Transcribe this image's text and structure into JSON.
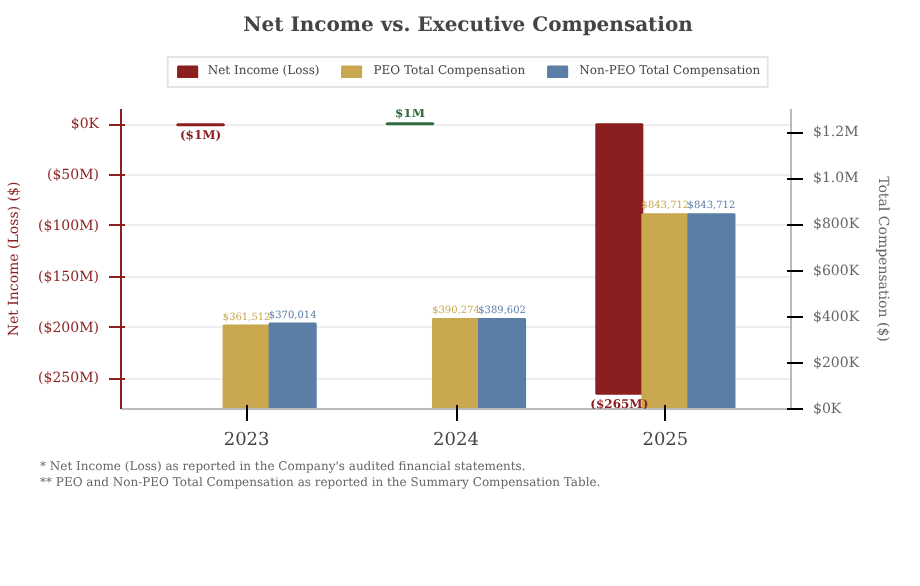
{
  "chart_data": {
    "type": "bar",
    "title": "Net Income vs. Executive Compensation",
    "categories": [
      "2023",
      "2024",
      "2025"
    ],
    "ylabel": "Net Income (Loss) ($)",
    "y2label": "Total Compensation ($)",
    "ylim": [
      -280,
      15
    ],
    "yticks": [
      {
        "value": 0,
        "label": "$0K"
      },
      {
        "value": -50,
        "label": "($50M)"
      },
      {
        "value": -100,
        "label": "($100M)"
      },
      {
        "value": -150,
        "label": "($150M)"
      },
      {
        "value": -200,
        "label": "($200M)"
      },
      {
        "value": -250,
        "label": "($250M)"
      }
    ],
    "y2lim": [
      0,
      1300000
    ],
    "y2ticks": [
      {
        "value": 0,
        "label": "$0K"
      },
      {
        "value": 200000,
        "label": "$200K"
      },
      {
        "value": 400000,
        "label": "$400K"
      },
      {
        "value": 600000,
        "label": "$600K"
      },
      {
        "value": 800000,
        "label": "$800K"
      },
      {
        "value": 1000000,
        "label": "$1.0M"
      },
      {
        "value": 1200000,
        "label": "$1.2M"
      }
    ],
    "series": [
      {
        "name": "Net Income (Loss)",
        "color": "#8b1e1e",
        "colors": [
          "#8b1e1e",
          "#2f6b3c",
          "#8b1e1e"
        ],
        "values": [
          -1,
          1,
          -265
        ],
        "value_labels": [
          "($1M)",
          "$1M",
          "($265M)"
        ]
      },
      {
        "name": "PEO Total Compensation",
        "color": "#c9a74f",
        "axis": "y2",
        "values": [
          361512,
          390274,
          843712
        ],
        "value_labels": [
          "$361,512",
          "$390,274",
          "$843,712"
        ]
      },
      {
        "name": "Non-PEO Total Compensation",
        "color": "#5a7ea6",
        "axis": "y2",
        "values": [
          370014,
          389602,
          843712
        ],
        "value_labels": [
          "$370,014",
          "$389,602",
          "$843,712"
        ]
      }
    ],
    "grid": "y",
    "legend": "top",
    "annotations": [
      "* Net Income (Loss) as reported in the Company's audited financial statements.",
      "** PEO and Non-PEO Total Compensation as reported in the Summary Compensation Table."
    ]
  }
}
